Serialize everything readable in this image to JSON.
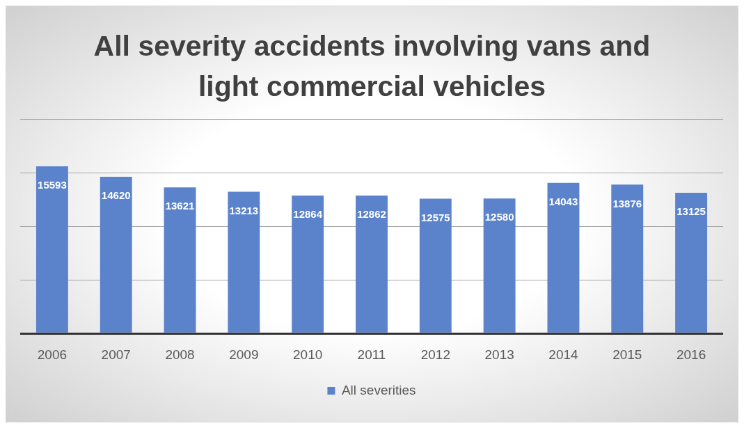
{
  "chart_data": {
    "type": "bar",
    "title": "All severity accidents involving vans and light commercial vehicles",
    "categories": [
      "2006",
      "2007",
      "2008",
      "2009",
      "2010",
      "2011",
      "2012",
      "2013",
      "2014",
      "2015",
      "2016"
    ],
    "series": [
      {
        "name": "All severities",
        "color": "#5b83cb",
        "values": [
          15593,
          14620,
          13621,
          13213,
          12864,
          12862,
          12575,
          12580,
          14043,
          13876,
          13125
        ]
      }
    ],
    "ylim": [
      0,
      20000
    ],
    "tick_labels": "x",
    "grid": "y",
    "legend": "bottom",
    "data_labels": true
  }
}
